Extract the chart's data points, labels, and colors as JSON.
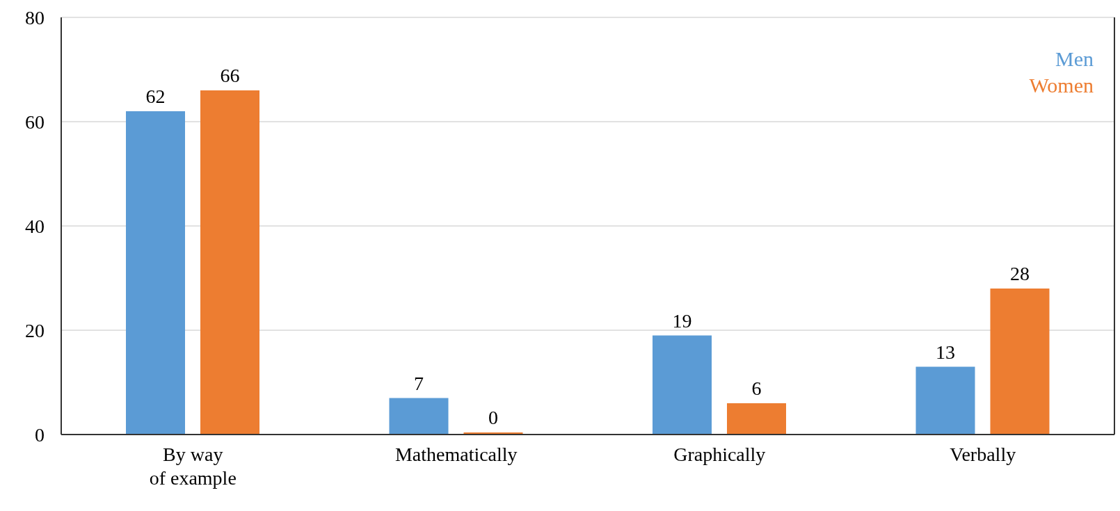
{
  "chart_data": {
    "type": "bar",
    "categories": [
      "By way\nof example",
      "Mathematically",
      "Graphically",
      "Verbally"
    ],
    "series": [
      {
        "name": "Men",
        "color": "#5b9bd5",
        "values": [
          62,
          7,
          19,
          13
        ]
      },
      {
        "name": "Women",
        "color": "#ed7d31",
        "values": [
          66,
          0,
          6,
          28
        ]
      }
    ],
    "ylim": [
      0,
      80
    ],
    "yticks": [
      0,
      20,
      40,
      60,
      80
    ],
    "grid": "y",
    "legend": "top right",
    "data_labels": true
  }
}
